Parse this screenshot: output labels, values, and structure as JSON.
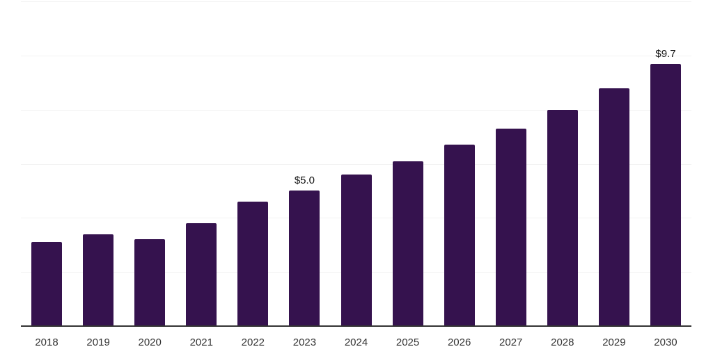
{
  "chart_data": {
    "type": "bar",
    "title": "",
    "xlabel": "",
    "ylabel": "",
    "categories": [
      "2018",
      "2019",
      "2020",
      "2021",
      "2022",
      "2023",
      "2024",
      "2025",
      "2026",
      "2027",
      "2028",
      "2029",
      "2030"
    ],
    "values": [
      3.1,
      3.4,
      3.2,
      3.8,
      4.6,
      5.0,
      5.6,
      6.1,
      6.7,
      7.3,
      8.0,
      8.8,
      9.7
    ],
    "data_labels": {
      "2023": "$5.0",
      "2030": "$9.7"
    },
    "ylim": [
      0,
      12
    ],
    "gridline_step": 2,
    "grid": true,
    "legend": false,
    "y_tick_labels_visible": false,
    "colors": {
      "bar": "#35124E",
      "axis_line": "#333333",
      "gridline": "#f2f2f2",
      "x_tick_label": "#333333",
      "data_label": "#111111",
      "background": "#ffffff"
    }
  }
}
